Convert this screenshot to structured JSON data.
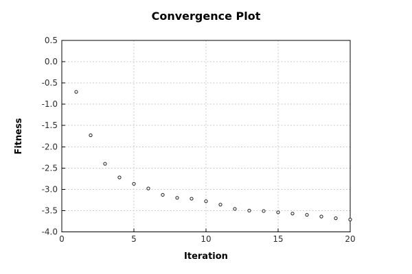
{
  "figure": {
    "title": "Convergence Plot",
    "xlabel": "Iteration",
    "ylabel": "Fitness"
  },
  "chart_data": {
    "type": "scatter",
    "title": "Convergence Plot",
    "xlabel": "Iteration",
    "ylabel": "Fitness",
    "series_name": "fitness",
    "x": [
      1,
      2,
      3,
      4,
      5,
      6,
      7,
      8,
      9,
      10,
      11,
      12,
      13,
      14,
      15,
      16,
      17,
      18,
      19,
      20
    ],
    "y": [
      -0.71,
      -1.73,
      -2.4,
      -2.72,
      -2.87,
      -2.98,
      -3.13,
      -3.2,
      -3.22,
      -3.28,
      -3.36,
      -3.46,
      -3.5,
      -3.51,
      -3.54,
      -3.57,
      -3.6,
      -3.64,
      -3.68,
      -3.71
    ],
    "xlim": [
      0,
      20
    ],
    "ylim": [
      -4.0,
      0.5
    ],
    "xticks": [
      0,
      5,
      10,
      15,
      20
    ],
    "xtick_labels": [
      "0",
      "5",
      "10",
      "15",
      "20"
    ],
    "yticks": [
      0.5,
      0.0,
      -0.5,
      -1.0,
      -1.5,
      -2.0,
      -2.5,
      -3.0,
      -3.5,
      -4.0
    ],
    "ytick_labels": [
      "0.5",
      "0.0",
      "-0.5",
      "-1.0",
      "-1.5",
      "-2.0",
      "-2.5",
      "-3.0",
      "-3.5",
      "-4.0"
    ],
    "grid": true,
    "legend": false,
    "marker": "open-circle"
  },
  "colors": {
    "background": "#ffffff",
    "frame": "#000000",
    "grid": "#c9c9c9",
    "marker_stroke": "#1a1a1a",
    "marker_fill": "#ffffff",
    "title_text": "#000000",
    "tick_text": "#2b2b2b"
  }
}
